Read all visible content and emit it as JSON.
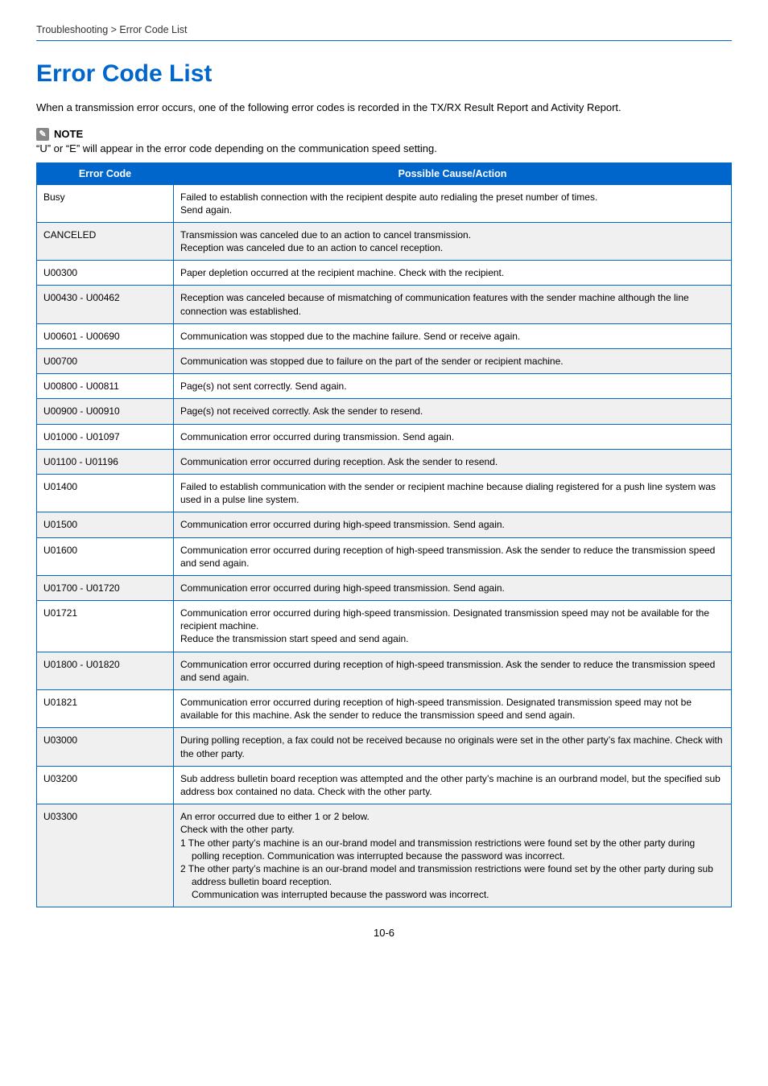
{
  "breadcrumb": "Troubleshooting > Error Code List",
  "title": "Error Code List",
  "intro": "When a transmission error occurs, one of the following error codes is recorded in the TX/RX Result Report and Activity Report.",
  "note_label": "NOTE",
  "note_text": "“U” or “E” will appear in the error code depending on the communication speed setting.",
  "table": {
    "headers": [
      "Error Code",
      "Possible Cause/Action"
    ],
    "rows": [
      {
        "code": "Busy",
        "lines": [
          "Failed to establish connection with the recipient despite auto redialing the preset number of times.",
          "Send again."
        ]
      },
      {
        "code": "CANCELED",
        "lines": [
          "Transmission was canceled due to an action to cancel transmission.",
          "Reception was canceled due to an action to cancel reception."
        ]
      },
      {
        "code": "U00300",
        "lines": [
          "Paper depletion occurred at the recipient machine. Check with the recipient."
        ]
      },
      {
        "code": "U00430 - U00462",
        "lines": [
          "Reception was canceled because of mismatching of communication features with the sender machine although the line connection was established."
        ]
      },
      {
        "code": "U00601 - U00690",
        "lines": [
          "Communication was stopped due to the machine failure. Send or receive again."
        ]
      },
      {
        "code": "U00700",
        "lines": [
          "Communication was stopped due to failure on the part of the sender or recipient machine."
        ]
      },
      {
        "code": "U00800 - U00811",
        "lines": [
          "Page(s) not sent correctly. Send again."
        ]
      },
      {
        "code": "U00900 - U00910",
        "lines": [
          "Page(s) not received correctly. Ask the sender to resend."
        ]
      },
      {
        "code": "U01000 - U01097",
        "lines": [
          "Communication error occurred during transmission. Send again."
        ]
      },
      {
        "code": "U01100 - U01196",
        "lines": [
          "Communication error occurred during reception. Ask the sender to resend."
        ]
      },
      {
        "code": "U01400",
        "lines": [
          "Failed to establish communication with the sender or recipient machine because dialing registered for a push line system was used in a pulse line system."
        ]
      },
      {
        "code": "U01500",
        "lines": [
          "Communication error occurred during high-speed transmission. Send again."
        ]
      },
      {
        "code": "U01600",
        "lines": [
          "Communication error occurred during reception of high-speed transmission. Ask the sender to reduce the transmission speed and send again."
        ]
      },
      {
        "code": "U01700 - U01720",
        "lines": [
          "Communication error occurred during high-speed transmission. Send again."
        ]
      },
      {
        "code": "U01721",
        "lines": [
          "Communication error occurred during high-speed transmission. Designated transmission speed may not be available for the recipient machine.",
          "Reduce the transmission start speed and send again."
        ]
      },
      {
        "code": "U01800 - U01820",
        "lines": [
          "Communication error occurred during reception of high-speed transmission. Ask the sender to reduce the transmission speed and send again."
        ]
      },
      {
        "code": "U01821",
        "lines": [
          "Communication error occurred during reception of high-speed transmission. Designated transmission speed may not be available for this machine. Ask the sender to reduce the transmission speed and send again."
        ]
      },
      {
        "code": "U03000",
        "lines": [
          "During polling reception, a fax could not be received because no originals were set in the other party’s fax machine. Check with the other party."
        ]
      },
      {
        "code": "U03200",
        "lines": [
          "Sub address bulletin board reception was attempted and the other party’s machine is an ourbrand model, but the specified sub address box contained no data. Check with the other party."
        ]
      },
      {
        "code": "U03300",
        "lines": [
          "An error occurred due to either 1 or 2 below.",
          "Check with the other party."
        ],
        "list": [
          "The other party’s machine is an our-brand model and transmission restrictions were found set by the other party during polling reception. Communication was interrupted because the password was incorrect.",
          "The other party’s machine is an our-brand model and transmission restrictions were found set by the other party during sub address bulletin board reception.\nCommunication was interrupted because the password was incorrect."
        ]
      }
    ]
  },
  "page_number": "10-6",
  "colors": {
    "accent": "#0066cc",
    "row_alt": "#f0f0f0",
    "text": "#000000",
    "icon_bg": "#888888"
  }
}
